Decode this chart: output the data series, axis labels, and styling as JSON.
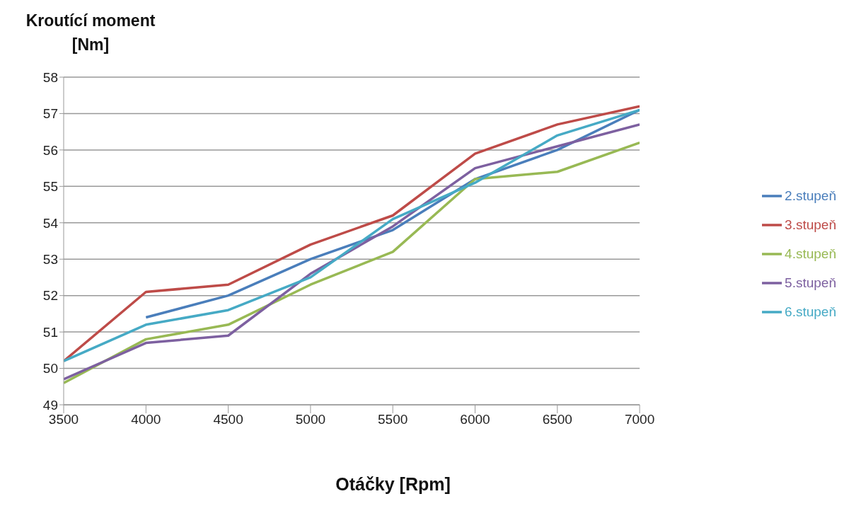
{
  "chart_data": {
    "type": "line",
    "xlabel": "Otáčky [Rpm]",
    "ylabel": "Kroutící moment [Nm]",
    "x": [
      3500,
      4000,
      4500,
      5000,
      5500,
      6000,
      6500,
      7000
    ],
    "series": [
      {
        "name": "2.stupeň",
        "color": "#4a7ebb",
        "values": [
          null,
          51.4,
          52.0,
          53.0,
          53.8,
          55.2,
          56.0,
          57.1
        ]
      },
      {
        "name": "3.stupeň",
        "color": "#be4b48",
        "values": [
          50.2,
          52.1,
          52.3,
          53.4,
          54.2,
          55.9,
          56.7,
          57.2
        ]
      },
      {
        "name": "4.stupeň",
        "color": "#98b954",
        "values": [
          49.6,
          50.8,
          51.2,
          52.3,
          53.2,
          55.2,
          55.4,
          56.2
        ]
      },
      {
        "name": "5.stupeň",
        "color": "#7d60a0",
        "values": [
          49.7,
          50.7,
          50.9,
          52.6,
          53.9,
          55.5,
          56.1,
          56.7
        ]
      },
      {
        "name": "6.stupeň",
        "color": "#46aac5",
        "values": [
          50.2,
          51.2,
          51.6,
          52.5,
          54.1,
          55.1,
          56.4,
          57.1
        ]
      }
    ],
    "xlim": [
      3500,
      7000
    ],
    "xticks": [
      3500,
      4000,
      4500,
      5000,
      5500,
      6000,
      6500,
      7000
    ],
    "ylim": [
      49,
      58
    ],
    "yticks": [
      49,
      50,
      51,
      52,
      53,
      54,
      55,
      56,
      57,
      58
    ],
    "grid": "y",
    "legend": "right",
    "marker": "none",
    "line_style": "solid"
  }
}
